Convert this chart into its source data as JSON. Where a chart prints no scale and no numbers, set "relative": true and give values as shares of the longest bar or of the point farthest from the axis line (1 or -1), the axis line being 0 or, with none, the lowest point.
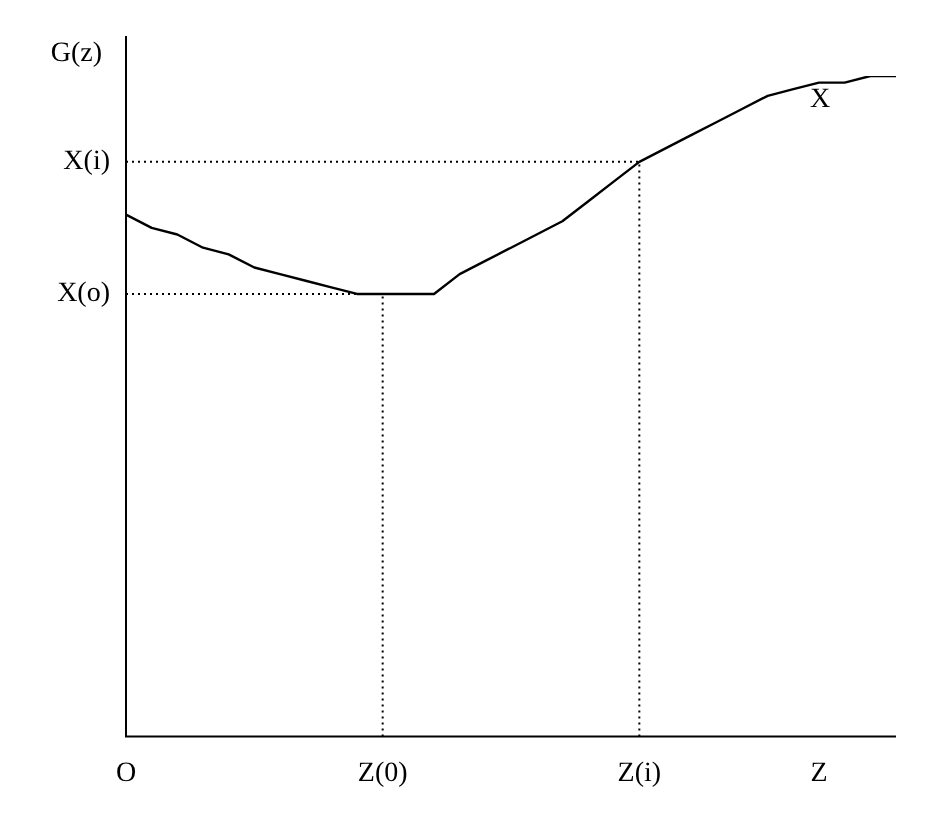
{
  "chart_data": {
    "type": "line",
    "relative": true,
    "ylabel": "G(z)",
    "categories": [
      "O",
      null,
      null,
      null,
      null,
      null,
      null,
      null,
      null,
      null,
      "Z(0)",
      null,
      null,
      null,
      null,
      null,
      null,
      null,
      null,
      null,
      "Z(i)",
      null,
      null,
      null,
      null,
      null,
      null,
      "Z",
      null,
      null,
      null
    ],
    "series": [
      {
        "color": "#000000",
        "values": [
          0.79,
          0.77,
          0.76,
          0.74,
          0.73,
          0.71,
          0.7,
          0.69,
          0.68,
          0.67,
          0.67,
          0.67,
          0.67,
          0.7,
          0.72,
          0.74,
          0.76,
          0.78,
          0.81,
          0.84,
          0.87,
          0.89,
          0.91,
          0.93,
          0.95,
          0.97,
          0.98,
          0.99,
          0.99,
          1.0,
          1.0
        ]
      }
    ],
    "ref_lines": [
      {
        "axis": "y",
        "value": 0.87,
        "label": "X(i)",
        "line_style": "dotted"
      },
      {
        "axis": "y",
        "value": 0.67,
        "label": "X(o)",
        "line_style": "dotted"
      },
      {
        "axis": "x",
        "value": "Z(0)",
        "line_style": "dotted"
      },
      {
        "axis": "x",
        "value": "Z(i)",
        "line_style": "dotted"
      }
    ],
    "annotations": [
      "X"
    ]
  }
}
